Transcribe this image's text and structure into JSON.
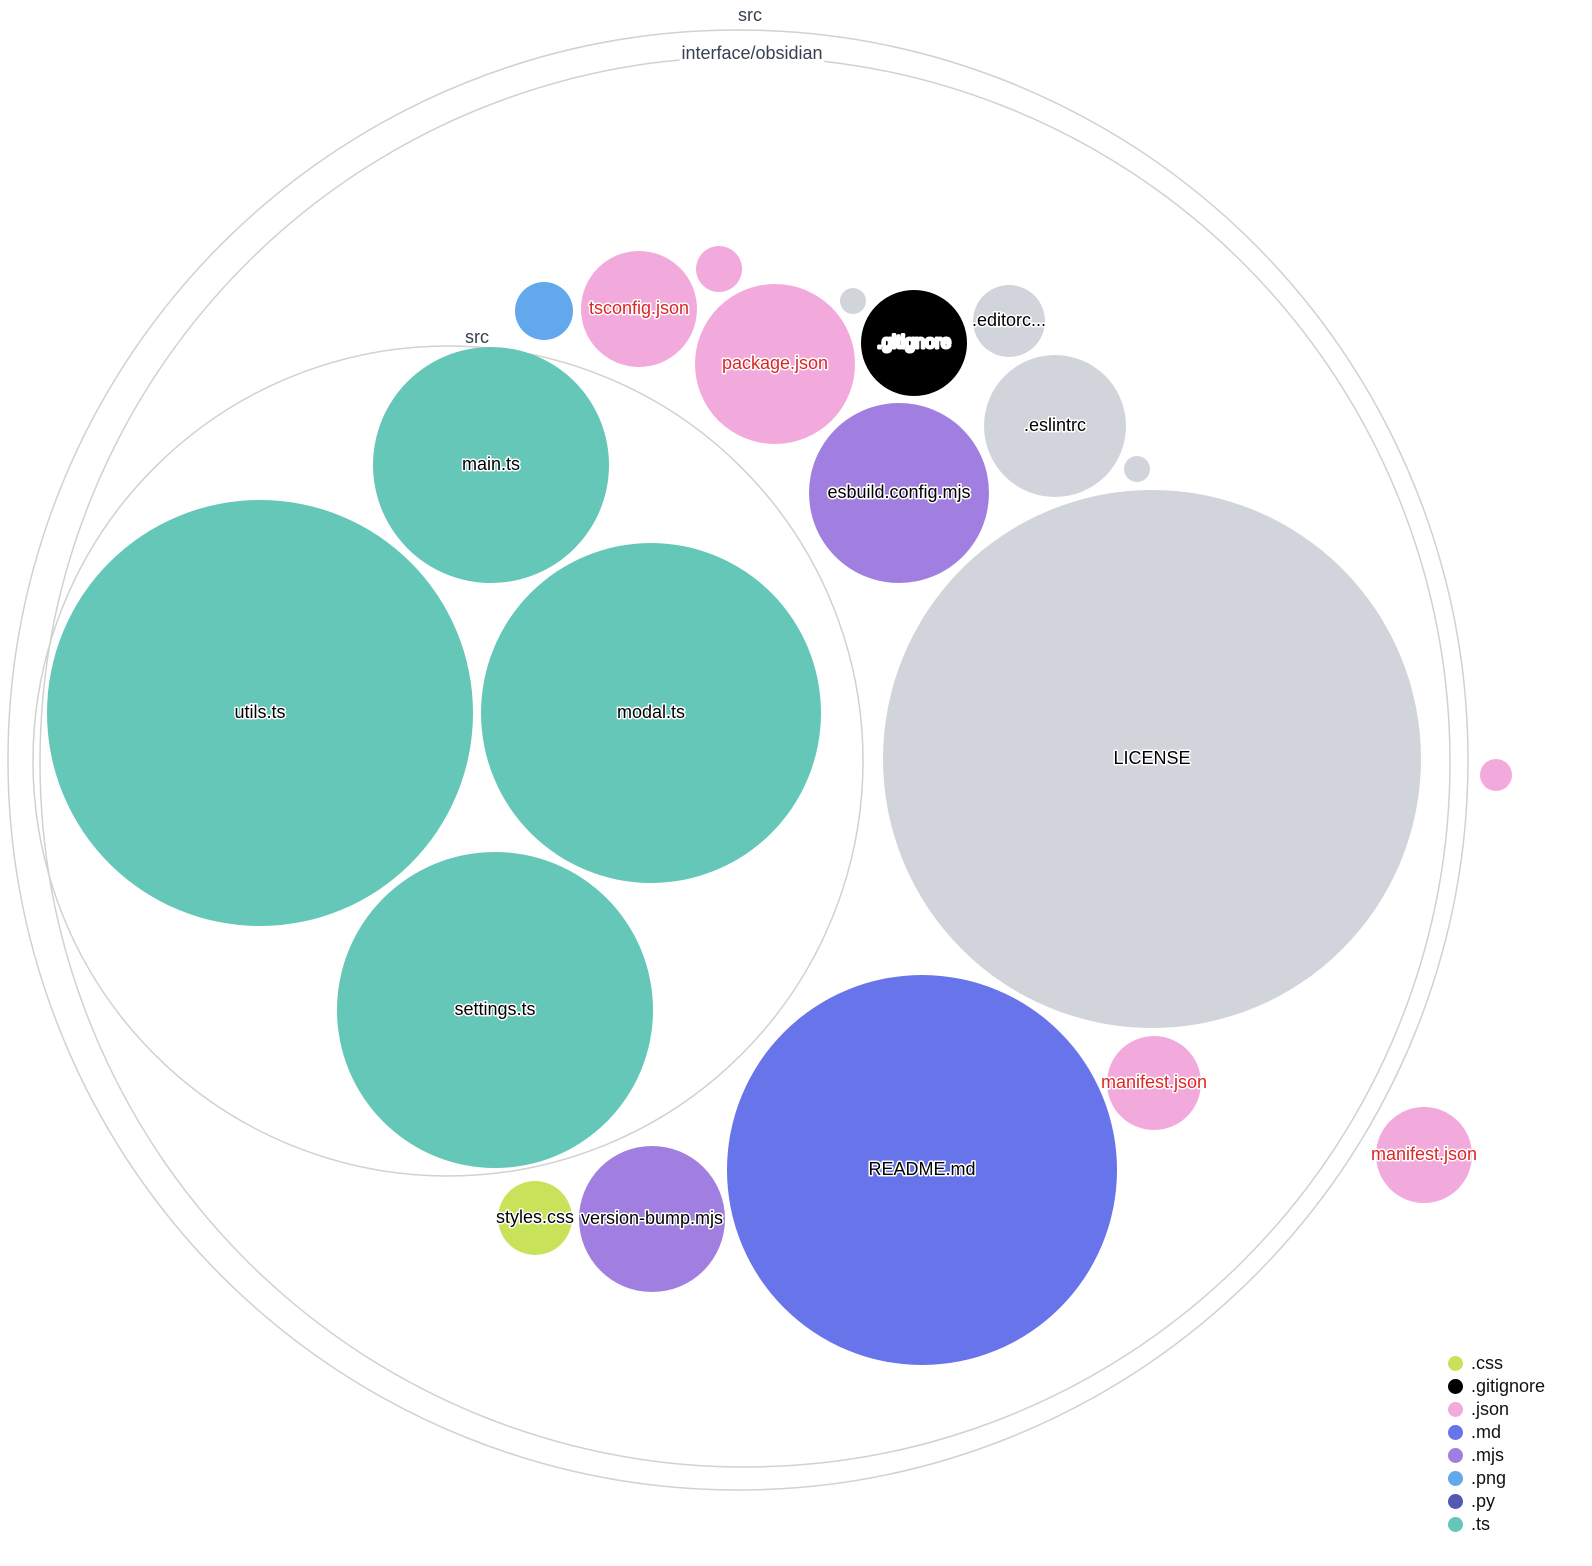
{
  "directories": [
    {
      "name": "src"
    },
    {
      "name": "interface/obsidian"
    },
    {
      "name": "src"
    }
  ],
  "files": [
    {
      "label": "main.ts",
      "ext": ".ts",
      "label_color": "#000000"
    },
    {
      "label": "utils.ts",
      "ext": ".ts",
      "label_color": "#000000"
    },
    {
      "label": "modal.ts",
      "ext": ".ts",
      "label_color": "#000000"
    },
    {
      "label": "settings.ts",
      "ext": ".ts",
      "label_color": "#000000"
    },
    {
      "label": "LICENSE",
      "ext": "",
      "label_color": "#000000"
    },
    {
      "label": "README.md",
      "ext": ".md",
      "label_color": "#000000"
    },
    {
      "label": "manifest.json",
      "ext": ".json",
      "label_color": "#dc2626"
    },
    {
      "label": "manifest.json",
      "ext": ".json",
      "label_color": "#dc2626"
    },
    {
      "label": "",
      "ext": ".json",
      "label_color": "#dc2626"
    },
    {
      "label": "styles.css",
      "ext": ".css",
      "label_color": "#000000"
    },
    {
      "label": "version-bump.mjs",
      "ext": ".mjs",
      "label_color": "#000000"
    },
    {
      "label": "esbuild.config.mjs",
      "ext": ".mjs",
      "label_color": "#000000"
    },
    {
      "label": ".eslintrc",
      "ext": "",
      "label_color": "#000000"
    },
    {
      "label": "",
      "ext": "",
      "label_color": "#000000"
    },
    {
      "label": ".editorc...",
      "ext": "",
      "label_color": "#000000"
    },
    {
      "label": ".gitignore",
      "ext": ".gitignore",
      "label_color": "#ffffff"
    },
    {
      "label": "",
      "ext": "",
      "label_color": "#000000"
    },
    {
      "label": "package.json",
      "ext": ".json",
      "label_color": "#dc2626"
    },
    {
      "label": "",
      "ext": ".json",
      "label_color": "#dc2626"
    },
    {
      "label": "tsconfig.json",
      "ext": ".json",
      "label_color": "#dc2626"
    },
    {
      "label": "",
      "ext": ".png",
      "label_color": "#000000"
    }
  ],
  "default_color": "#d1d5db",
  "legend": [
    {
      "label": ".css",
      "color": "#c8e35a"
    },
    {
      "label": ".gitignore",
      "color": "#000000"
    },
    {
      "label": ".json",
      "color": "#f2aadc"
    },
    {
      "label": ".md",
      "color": "#6874ea"
    },
    {
      "label": ".mjs",
      "color": "#a17fe0"
    },
    {
      "label": ".png",
      "color": "#62a8ec"
    },
    {
      "label": ".py",
      "color": "#5358b2"
    },
    {
      "label": ".ts",
      "color": "#64c7b8"
    }
  ]
}
